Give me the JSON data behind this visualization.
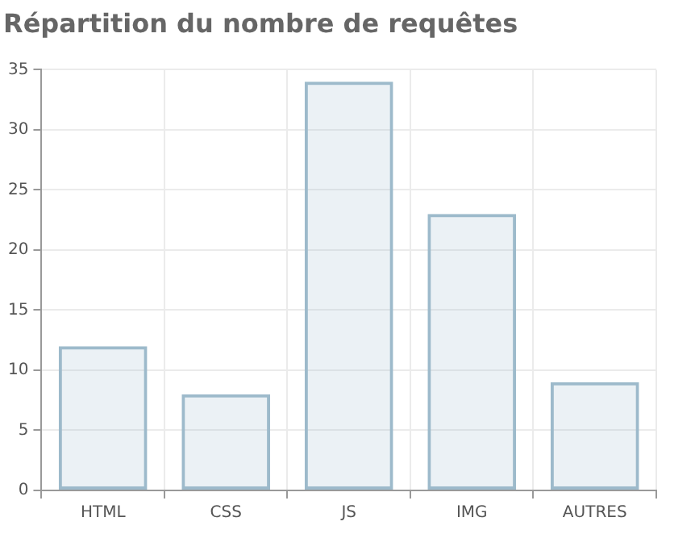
{
  "chart_data": {
    "type": "bar",
    "title": "Répartition du nombre de requêtes",
    "categories": [
      "HTML",
      "CSS",
      "JS",
      "IMG",
      "AUTRES"
    ],
    "values": [
      12,
      8,
      34,
      23,
      9
    ],
    "color": "#9dbacb",
    "ylim": [
      0,
      35
    ],
    "yticks": [
      0,
      5,
      10,
      15,
      20,
      25,
      30,
      35
    ],
    "grid": true,
    "legend": false
  }
}
